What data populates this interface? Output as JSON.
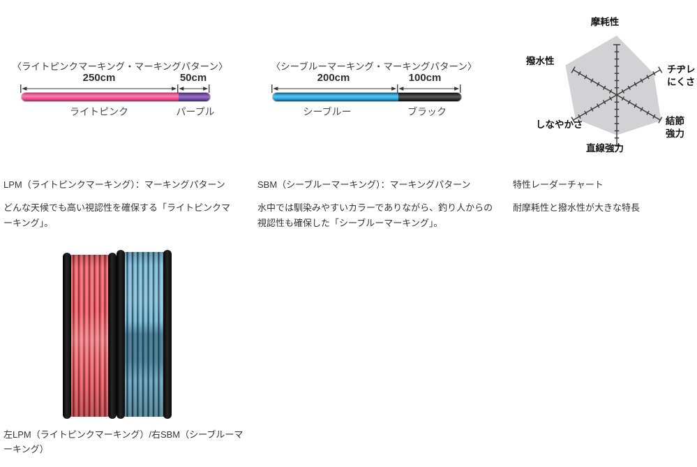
{
  "diagrams": [
    {
      "title": "〈ライトピンクマーキング・マーキングパターン〉",
      "seg1_cm": "250cm",
      "seg2_cm": "50cm",
      "seg1_label": "ライトピンク",
      "seg2_label": "パープル",
      "seg1_color": "#ee4f90",
      "seg2_color": "#7a50ad",
      "heading": "LPM（ライトピンクマーキング）：マーキングパターン",
      "description": "どんな天候でも高い視認性を確保する「ライトピンクマーキング」。"
    },
    {
      "title": "〈シーブルーマーキング・マーキングパターン〉",
      "seg1_cm": "200cm",
      "seg2_cm": "100cm",
      "seg1_label": "シーブルー",
      "seg2_label": "ブラック",
      "seg1_color": "#27a6e0",
      "seg2_color": "#2b2b2b",
      "heading": "SBM（シーブルーマーキング）：マーキングパターン",
      "description": "水中では馴染みやすいカラーでありながら、釣り人からの視認性も確保した「シーブルーマーキング」。"
    }
  ],
  "radar": {
    "heading": "特性レーダーチャート",
    "description": "耐摩耗性と撥水性が大きな特長",
    "labels": {
      "top": "摩耗性",
      "upper_right": "チヂレにくさ",
      "lower_right": "結節強力",
      "bottom": "直線強力",
      "lower_left": "しなやかさ",
      "upper_left": "撥水性"
    },
    "fill_color": "#d2d2d5",
    "axis_color": "#3c3c3c"
  },
  "photo": {
    "caption": "左LPM（ライトピンクマーキング）/右SBM（シーブルーマーキング）",
    "left_line_color": "#f4696f",
    "right_line_color": "#79b9d4"
  },
  "chart_data": [
    {
      "type": "radar",
      "title": "特性レーダーチャート",
      "categories": [
        "摩耗性",
        "チヂレにくさ",
        "結節強力",
        "直線強力",
        "しなやかさ",
        "撥水性"
      ],
      "values": [
        1.18,
        0.85,
        1.02,
        0.8,
        0.95,
        1.18
      ],
      "scale": "fraction of axis length (axis end = 1.0)",
      "ticks_per_axis": 7,
      "fill": "#d2d2d5",
      "legend": "none",
      "annotation": "耐摩耗性と撥水性が大きな特長"
    },
    {
      "type": "bar",
      "title": "〈ライトピンクマーキング・マーキングパターン〉",
      "orientation": "horizontal-segments",
      "categories": [
        "ライトピンク",
        "パープル"
      ],
      "values": [
        250,
        50
      ],
      "unit": "cm"
    },
    {
      "type": "bar",
      "title": "〈シーブルーマーキング・マーキングパターン〉",
      "orientation": "horizontal-segments",
      "categories": [
        "シーブルー",
        "ブラック"
      ],
      "values": [
        200,
        100
      ],
      "unit": "cm"
    }
  ]
}
